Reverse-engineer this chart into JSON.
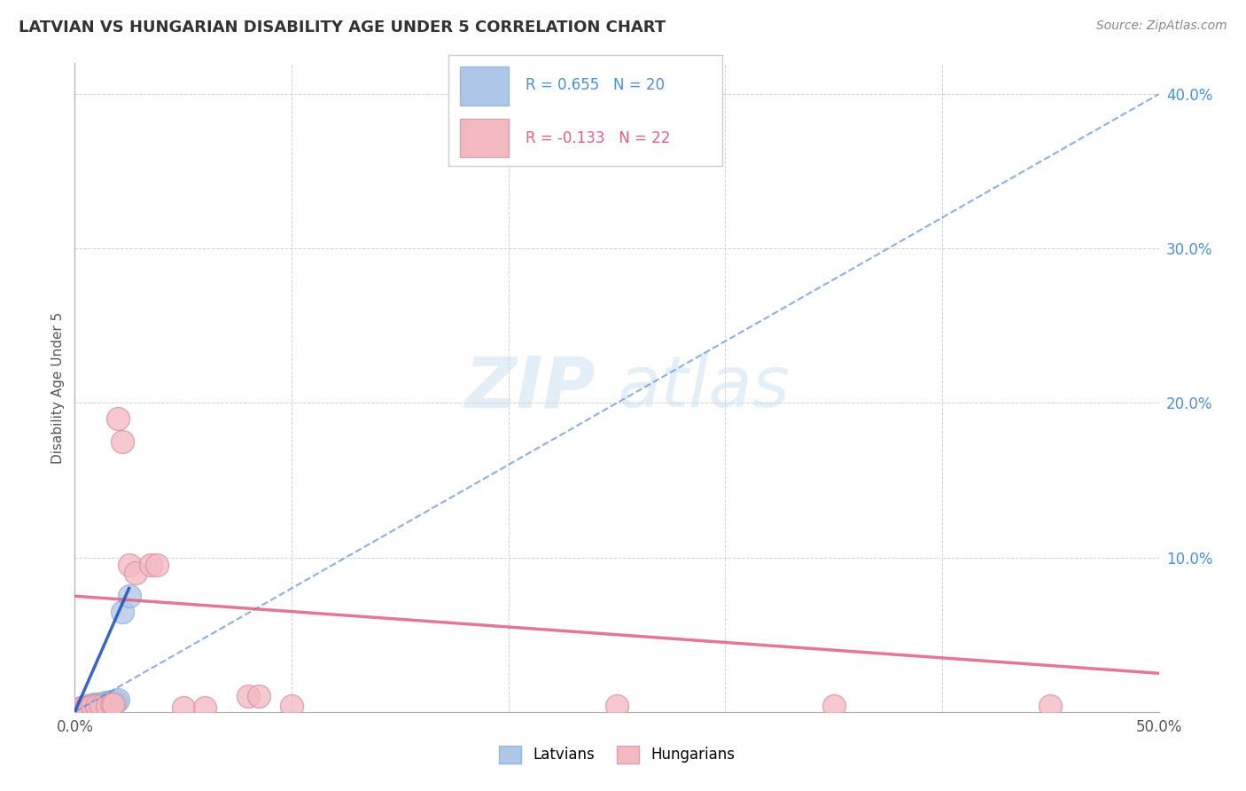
{
  "title": "LATVIAN VS HUNGARIAN DISABILITY AGE UNDER 5 CORRELATION CHART",
  "source": "Source: ZipAtlas.com",
  "ylabel": "Disability Age Under 5",
  "xlim": [
    0.0,
    0.5
  ],
  "ylim": [
    0.0,
    0.42
  ],
  "x_ticks": [
    0.0,
    0.1,
    0.2,
    0.3,
    0.4,
    0.5
  ],
  "x_tick_labels": [
    "0.0%",
    "",
    "",
    "",
    "",
    "50.0%"
  ],
  "y_ticks": [
    0.0,
    0.1,
    0.2,
    0.3,
    0.4
  ],
  "y_tick_labels": [
    "",
    "10.0%",
    "20.0%",
    "30.0%",
    "40.0%"
  ],
  "latvian_R": 0.655,
  "latvian_N": 20,
  "hungarian_R": -0.133,
  "hungarian_N": 22,
  "latvian_color": "#aec6e8",
  "hungarian_color": "#f4b8c1",
  "latvian_line_color": "#5b8dd9",
  "hungarian_line_color": "#e06080",
  "latvian_solid_line_color": "#2255bb",
  "legend_latvian_label": "Latvians",
  "legend_hungarian_label": "Hungarians",
  "latvian_points": [
    [
      0.003,
      0.003
    ],
    [
      0.004,
      0.002
    ],
    [
      0.005,
      0.004
    ],
    [
      0.006,
      0.003
    ],
    [
      0.007,
      0.003
    ],
    [
      0.008,
      0.004
    ],
    [
      0.009,
      0.005
    ],
    [
      0.01,
      0.004
    ],
    [
      0.011,
      0.005
    ],
    [
      0.012,
      0.004
    ],
    [
      0.013,
      0.005
    ],
    [
      0.014,
      0.006
    ],
    [
      0.015,
      0.005
    ],
    [
      0.016,
      0.006
    ],
    [
      0.017,
      0.007
    ],
    [
      0.018,
      0.006
    ],
    [
      0.019,
      0.007
    ],
    [
      0.02,
      0.008
    ],
    [
      0.022,
      0.065
    ],
    [
      0.025,
      0.075
    ]
  ],
  "hungarian_points": [
    [
      0.003,
      0.003
    ],
    [
      0.005,
      0.003
    ],
    [
      0.008,
      0.004
    ],
    [
      0.01,
      0.004
    ],
    [
      0.012,
      0.004
    ],
    [
      0.015,
      0.004
    ],
    [
      0.017,
      0.005
    ],
    [
      0.018,
      0.005
    ],
    [
      0.02,
      0.19
    ],
    [
      0.022,
      0.175
    ],
    [
      0.025,
      0.095
    ],
    [
      0.028,
      0.09
    ],
    [
      0.035,
      0.095
    ],
    [
      0.038,
      0.095
    ],
    [
      0.05,
      0.003
    ],
    [
      0.06,
      0.003
    ],
    [
      0.08,
      0.01
    ],
    [
      0.085,
      0.01
    ],
    [
      0.1,
      0.004
    ],
    [
      0.25,
      0.004
    ],
    [
      0.35,
      0.004
    ],
    [
      0.45,
      0.004
    ]
  ],
  "latvian_trend_x": [
    0.0,
    0.5
  ],
  "latvian_trend_y": [
    0.0,
    0.4
  ],
  "hungarian_trend_x": [
    0.0,
    0.5
  ],
  "hungarian_trend_y": [
    0.075,
    0.025
  ]
}
